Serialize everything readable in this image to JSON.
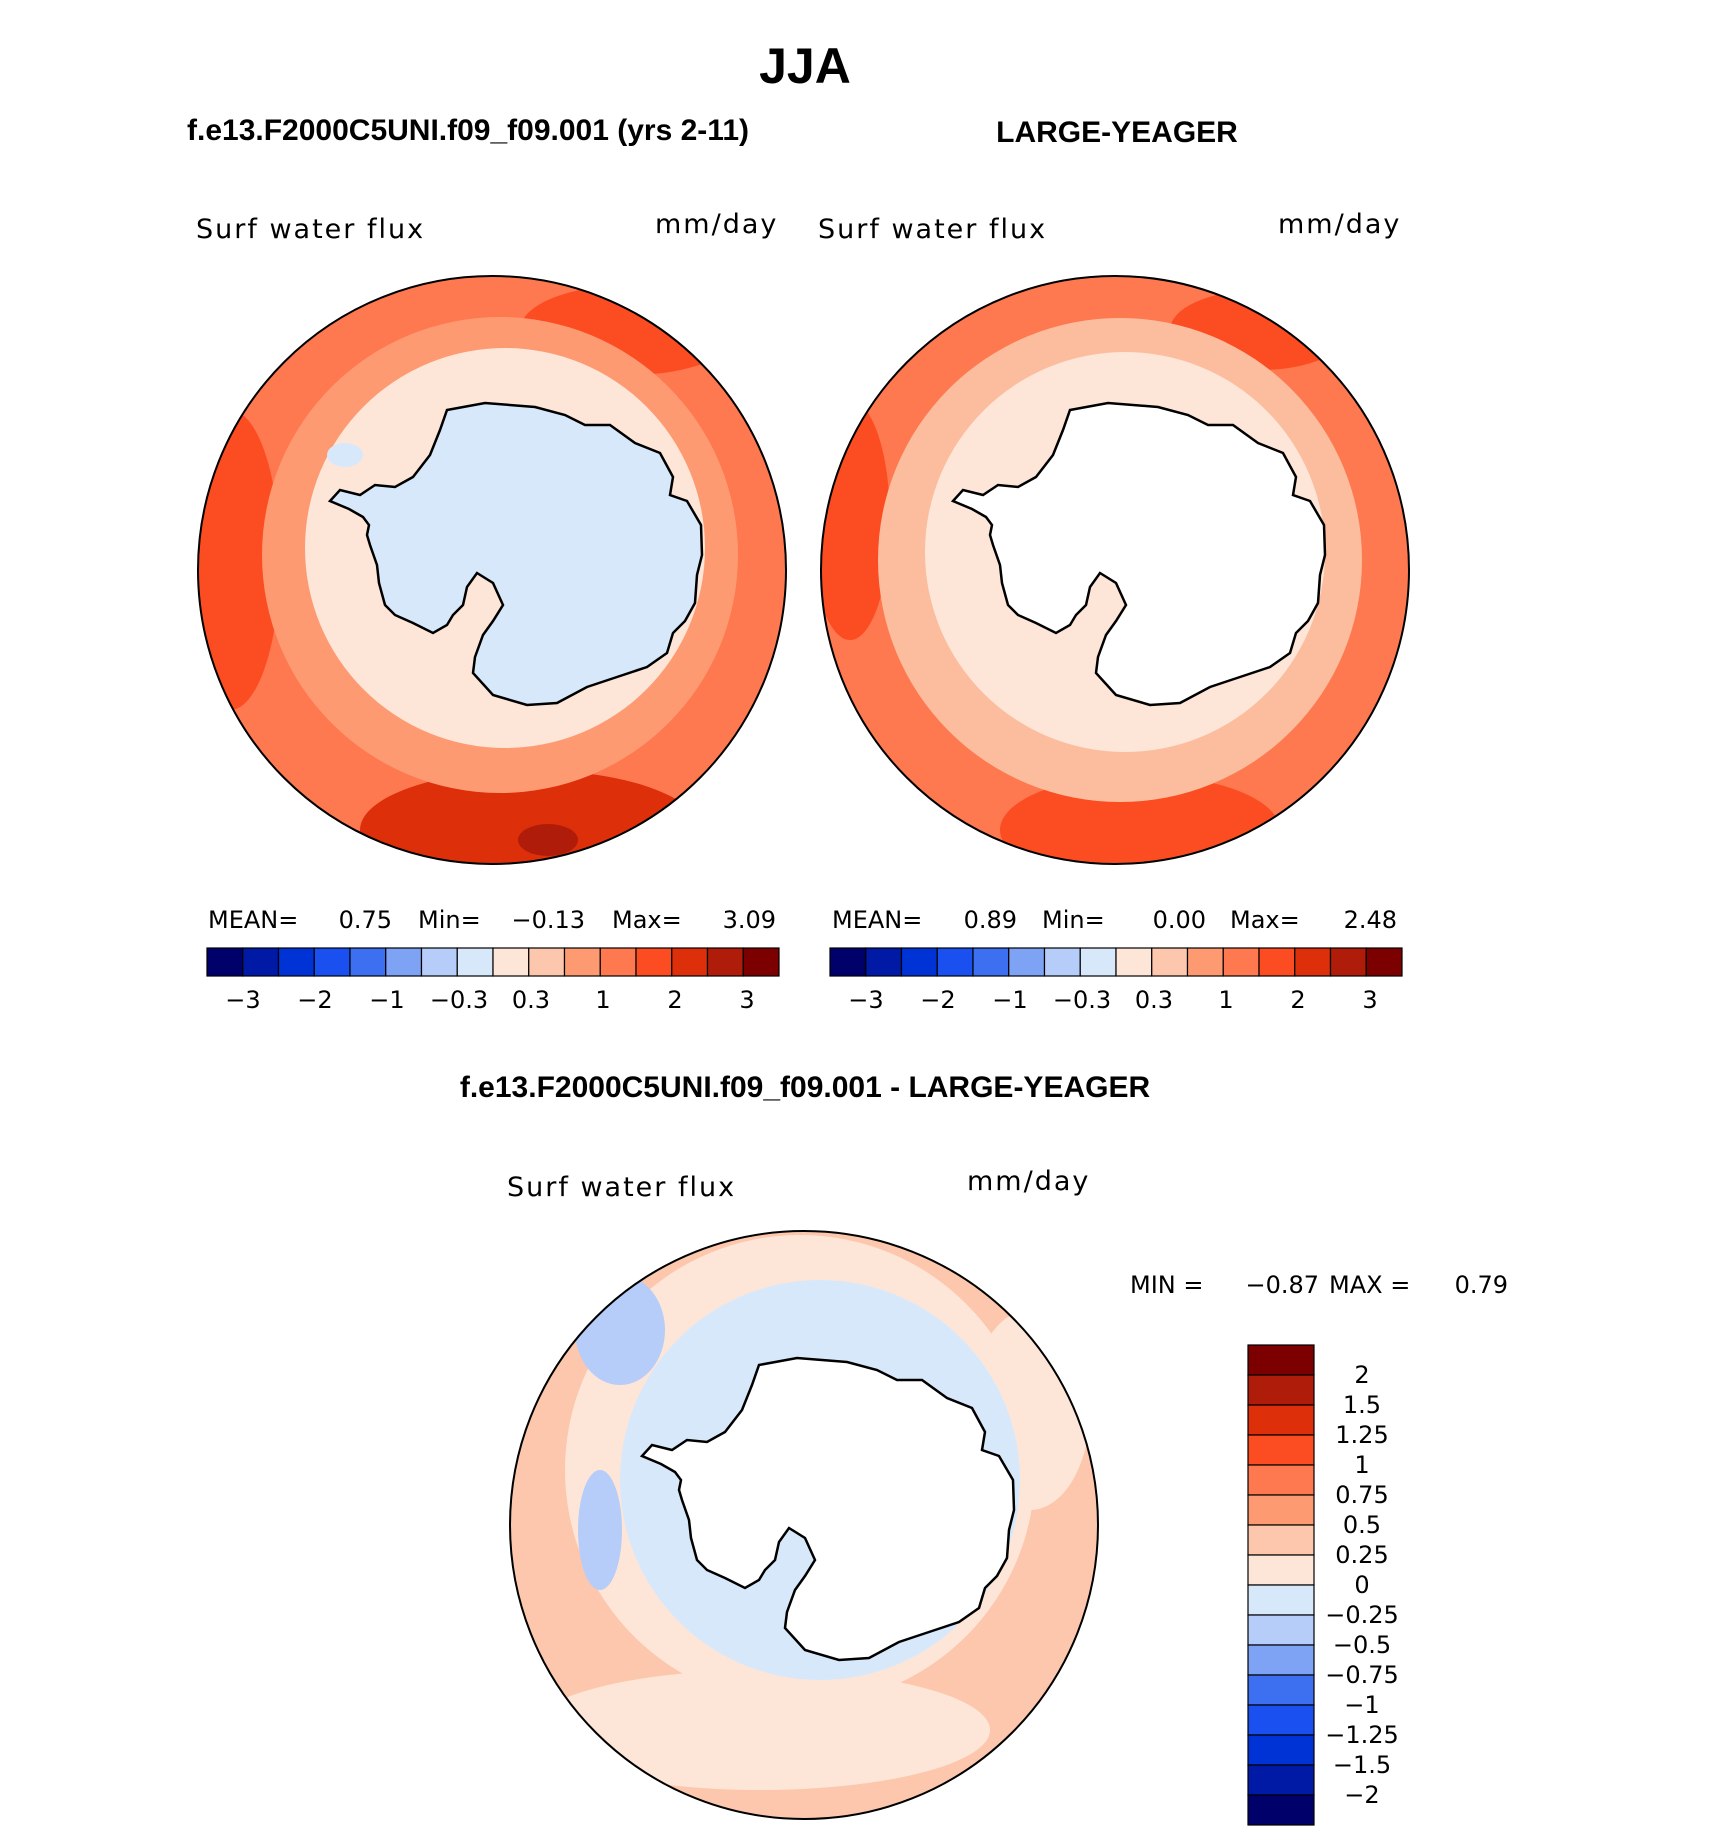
{
  "header": {
    "season": "JJA",
    "left_case": "f.e13.F2000C5UNI.f09_f09.001 (yrs 2-11)",
    "right_case": "LARGE-YEAGER",
    "diff_title": "f.e13.F2000C5UNI.f09_f09.001 - LARGE-YEAGER"
  },
  "panels": [
    {
      "variable": "Surf water flux",
      "units": "mm/day",
      "stats": {
        "mean_label": "MEAN=",
        "mean": "0.75",
        "min_label": "Min=",
        "min": "−0.13",
        "max_label": "Max=",
        "max": "3.09"
      },
      "ring_colors": [
        "#fe9a72",
        "#fe7850",
        "#fc4c22"
      ],
      "inner_color": "#fde6d8",
      "land_color": "#d8e8fb"
    },
    {
      "variable": "Surf water flux",
      "units": "mm/day",
      "stats": {
        "mean_label": "MEAN=",
        "mean": "0.89",
        "min_label": "Min=",
        "min": "0.00",
        "max_label": "Max=",
        "max": "2.48"
      },
      "ring_colors": [
        "#fcbd9e",
        "#fe7850",
        "#fc6a3e"
      ],
      "inner_color": "#fde6d8",
      "land_color": "#ffffff"
    },
    {
      "variable": "Surf water flux",
      "units": "mm/day",
      "stats": {
        "min_label": "MIN =",
        "min": "−0.87",
        "max_label": "MAX =",
        "max": "0.79"
      },
      "ring_colors": [
        "#fcc7ad",
        "#fde6d8",
        "#d8e8fb"
      ],
      "inner_color": "#c9defa",
      "land_color": "#ffffff"
    }
  ],
  "colorbar_main": {
    "colors": [
      "#00006a",
      "#001aa5",
      "#0033d6",
      "#1a4ff0",
      "#3c70f0",
      "#7ea3f5",
      "#b5cdf8",
      "#d8e8fb",
      "#fde6d8",
      "#fcc7ad",
      "#fe9a72",
      "#fe7850",
      "#fc4c22",
      "#dc2f0a",
      "#b01c0a",
      "#7c0000"
    ],
    "labels": [
      "−3",
      "−2",
      "−1",
      "−0.3",
      "0.3",
      "1",
      "2",
      "3"
    ]
  },
  "colorbar_diff": {
    "colors": [
      "#7c0000",
      "#b01c0a",
      "#dc2f0a",
      "#fc4c22",
      "#fe7850",
      "#fe9a72",
      "#fcc7ad",
      "#fde6d8",
      "#d8e8fb",
      "#b5cdf8",
      "#7ea3f5",
      "#3c70f0",
      "#1a4ff0",
      "#0033d6",
      "#001aa5",
      "#00006a"
    ],
    "labels": [
      "2",
      "1.5",
      "1.25",
      "1",
      "0.75",
      "0.5",
      "0.25",
      "0",
      "−0.25",
      "−0.5",
      "−0.75",
      "−1",
      "−1.25",
      "−1.5",
      "−2"
    ]
  }
}
